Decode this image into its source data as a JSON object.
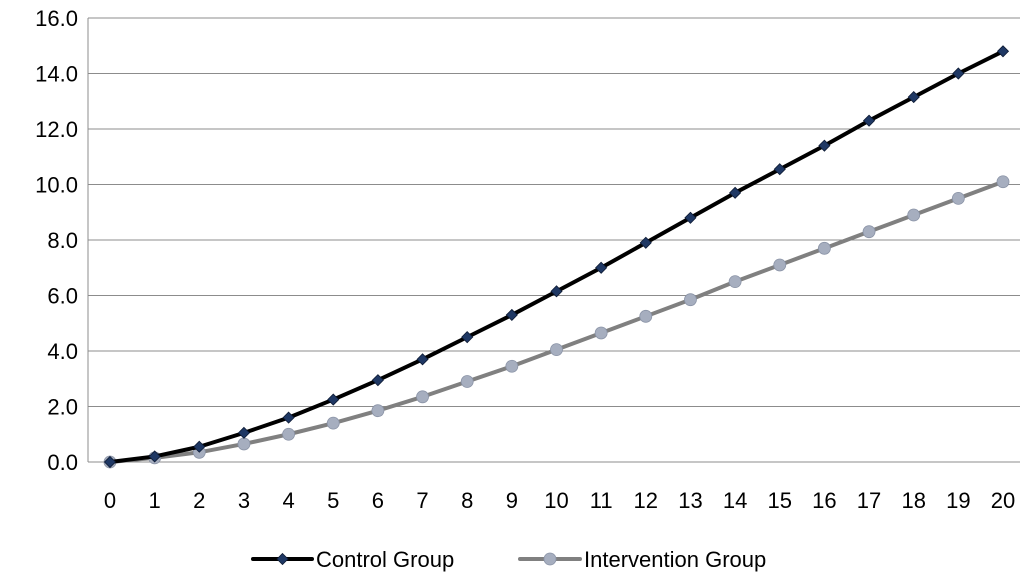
{
  "chart_data": {
    "type": "line",
    "title": "",
    "xlabel": "",
    "ylabel": "",
    "x": [
      0,
      1,
      2,
      3,
      4,
      5,
      6,
      7,
      8,
      9,
      10,
      11,
      12,
      13,
      14,
      15,
      16,
      17,
      18,
      19,
      20
    ],
    "xticks": [
      "0",
      "1",
      "2",
      "3",
      "4",
      "5",
      "6",
      "7",
      "8",
      "9",
      "10",
      "11",
      "12",
      "13",
      "14",
      "15",
      "16",
      "17",
      "18",
      "19",
      "20"
    ],
    "ylim": [
      0,
      16
    ],
    "yticks": [
      "0.0",
      "2.0",
      "4.0",
      "6.0",
      "8.0",
      "10.0",
      "12.0",
      "14.0",
      "16.0"
    ],
    "grid": "horizontal",
    "legend_position": "bottom",
    "series": [
      {
        "name": "Control Group",
        "color": "#000000",
        "marker": "diamond",
        "marker_color": "#1f3864",
        "values": [
          0.0,
          0.2,
          0.55,
          1.05,
          1.6,
          2.25,
          2.95,
          3.7,
          4.5,
          5.3,
          6.15,
          7.0,
          7.9,
          8.8,
          9.7,
          10.55,
          11.4,
          12.3,
          13.15,
          14.0,
          14.8
        ]
      },
      {
        "name": "Intervention Group",
        "color": "#808080",
        "marker": "circle",
        "marker_color": "#a6aebf",
        "values": [
          0.0,
          0.15,
          0.35,
          0.65,
          1.0,
          1.4,
          1.85,
          2.35,
          2.9,
          3.45,
          4.05,
          4.65,
          5.25,
          5.85,
          6.5,
          7.1,
          7.7,
          8.3,
          8.9,
          9.5,
          10.1
        ]
      }
    ]
  }
}
